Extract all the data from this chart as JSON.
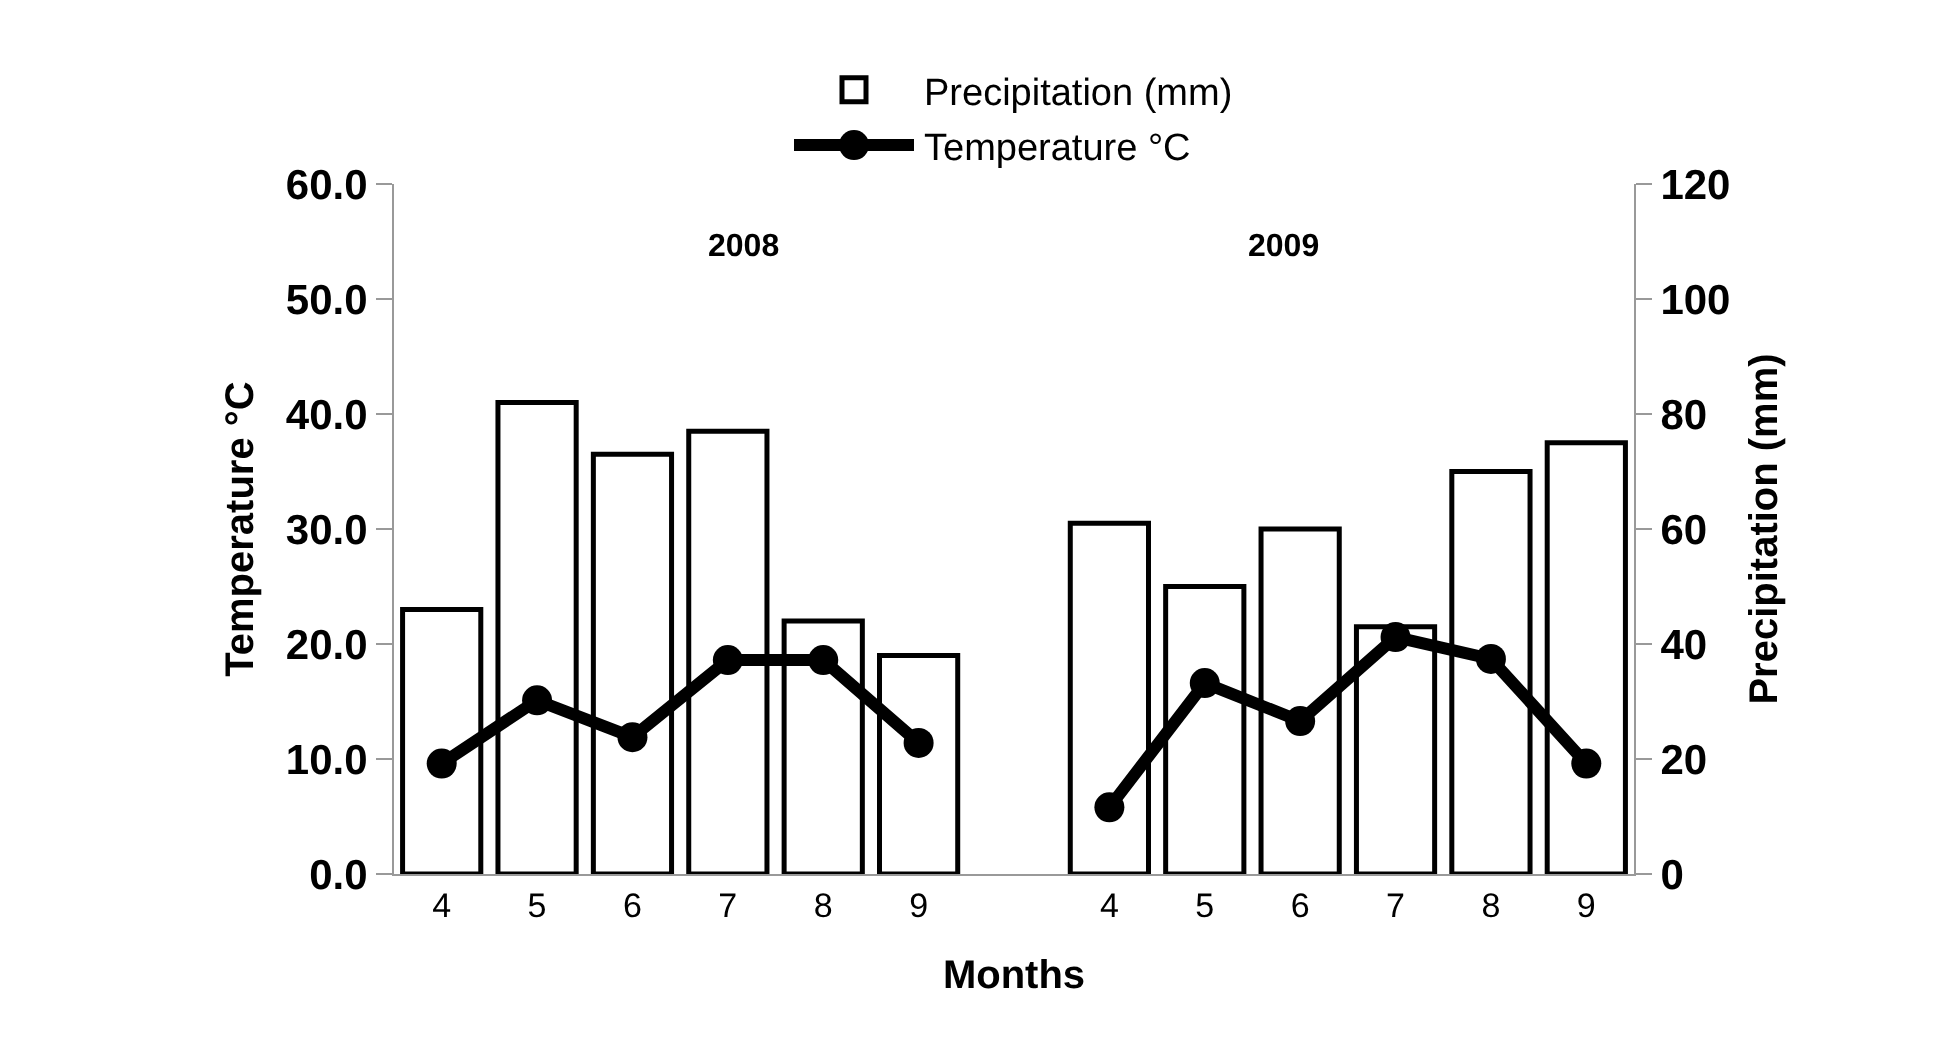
{
  "chart_data": {
    "type": "bar",
    "xlabel": "Months",
    "ylabel": "Temperature °C",
    "y2label": "Precipitation (mm)",
    "categories": [
      "4",
      "5",
      "6",
      "7",
      "8",
      "9",
      null,
      "4",
      "5",
      "6",
      "7",
      "8",
      "9"
    ],
    "series": [
      {
        "name": "Precipitation (mm)",
        "axis": "y2",
        "color": "#ffffff",
        "values": [
          46,
          82,
          73,
          77,
          44,
          38,
          null,
          61,
          50,
          60,
          43,
          70,
          75
        ]
      },
      {
        "name": "Temperature °C",
        "type": "line",
        "axis": "y",
        "color": "#000000",
        "marker": "circle",
        "values": [
          9.6,
          15.1,
          11.9,
          18.6,
          18.6,
          11.4,
          null,
          5.8,
          16.6,
          13.3,
          20.6,
          18.7,
          9.6
        ]
      }
    ],
    "ylim": [
      0,
      60
    ],
    "yticks": [
      {
        "value": 0,
        "label": "0.0"
      },
      {
        "value": 10,
        "label": "10.0"
      },
      {
        "value": 20,
        "label": "20.0"
      },
      {
        "value": 30,
        "label": "30.0"
      },
      {
        "value": 40,
        "label": "40.0"
      },
      {
        "value": 50,
        "label": "50.0"
      },
      {
        "value": 60,
        "label": "60.0"
      }
    ],
    "y2lim": [
      0,
      120
    ],
    "y2ticks": [
      0,
      20,
      40,
      60,
      80,
      100,
      120
    ],
    "annotations": [
      "2008",
      "2009"
    ],
    "legend": "top"
  }
}
